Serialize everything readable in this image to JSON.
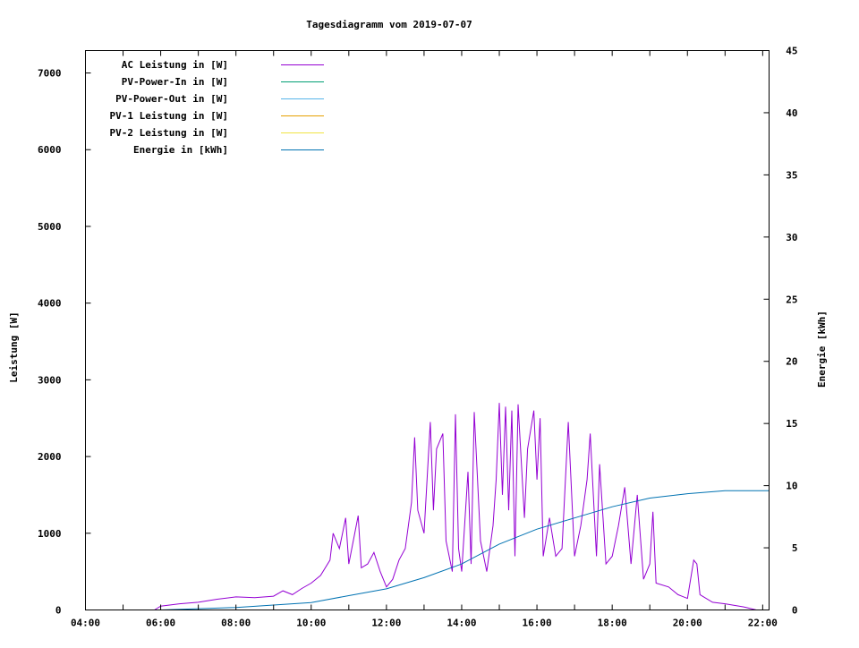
{
  "chart_data": {
    "type": "line",
    "title": "Tagesdiagramm vom 2019-07-07",
    "ylabel": "Leistung [W]",
    "y2label": "Energie [kWh]",
    "xlabel": "",
    "xlim_hours": [
      4,
      22.17
    ],
    "ylim": [
      0,
      7292
    ],
    "y2lim": [
      0,
      45
    ],
    "x_tick_labels": [
      "04:00",
      "06:00",
      "08:00",
      "10:00",
      "12:00",
      "14:00",
      "16:00",
      "18:00",
      "20:00",
      "22:00"
    ],
    "y_ticks": [
      0,
      1000,
      2000,
      3000,
      4000,
      5000,
      6000,
      7000
    ],
    "y2_ticks": [
      0,
      5,
      10,
      15,
      20,
      25,
      30,
      35,
      40,
      45
    ],
    "legend_position": "top-left",
    "legend": [
      {
        "label": "AC Leistung in [W]",
        "color": "#9400d3"
      },
      {
        "label": "PV-Power-In in [W]",
        "color": "#009e73"
      },
      {
        "label": "PV-Power-Out in [W]",
        "color": "#56b4e9"
      },
      {
        "label": "PV-1 Leistung in [W]",
        "color": "#e69f00"
      },
      {
        "label": "PV-2 Leistung in [W]",
        "color": "#f0e442"
      },
      {
        "label": "Energie in [kWh]",
        "color": "#0072b2"
      }
    ],
    "series": [
      {
        "name": "AC Leistung in [W]",
        "axis": "y",
        "color": "#9400d3",
        "x": [
          "05:50",
          "06:00",
          "06:30",
          "07:00",
          "07:30",
          "08:00",
          "08:30",
          "09:00",
          "09:15",
          "09:30",
          "09:45",
          "10:00",
          "10:15",
          "10:30",
          "10:35",
          "10:45",
          "10:55",
          "11:00",
          "11:15",
          "11:20",
          "11:30",
          "11:40",
          "11:50",
          "12:00",
          "12:10",
          "12:20",
          "12:30",
          "12:40",
          "12:45",
          "12:50",
          "13:00",
          "13:10",
          "13:15",
          "13:20",
          "13:30",
          "13:35",
          "13:45",
          "13:50",
          "13:55",
          "14:00",
          "14:10",
          "14:15",
          "14:20",
          "14:30",
          "14:40",
          "14:50",
          "14:55",
          "15:00",
          "15:05",
          "15:10",
          "15:15",
          "15:20",
          "15:25",
          "15:30",
          "15:40",
          "15:45",
          "15:55",
          "16:00",
          "16:05",
          "16:10",
          "16:20",
          "16:30",
          "16:40",
          "16:50",
          "17:00",
          "17:10",
          "17:20",
          "17:25",
          "17:30",
          "17:35",
          "17:40",
          "17:50",
          "18:00",
          "18:10",
          "18:20",
          "18:30",
          "18:40",
          "18:50",
          "19:00",
          "19:05",
          "19:10",
          "19:30",
          "19:45",
          "20:00",
          "20:10",
          "20:15",
          "20:20",
          "20:40",
          "21:00",
          "21:30",
          "21:50"
        ],
        "values": [
          0,
          50,
          80,
          100,
          140,
          170,
          160,
          180,
          250,
          200,
          280,
          350,
          450,
          650,
          1000,
          800,
          1200,
          600,
          1230,
          550,
          600,
          750,
          500,
          300,
          400,
          650,
          800,
          1400,
          2250,
          1300,
          1000,
          2450,
          1300,
          2100,
          2300,
          900,
          500,
          2550,
          800,
          500,
          1800,
          600,
          2580,
          900,
          500,
          1100,
          1700,
          2700,
          1500,
          2650,
          1300,
          2600,
          700,
          2680,
          1200,
          2100,
          2600,
          1700,
          2500,
          700,
          1200,
          700,
          800,
          2450,
          700,
          1100,
          1700,
          2300,
          1500,
          700,
          1900,
          600,
          700,
          1100,
          1600,
          600,
          1500,
          400,
          600,
          1280,
          350,
          300,
          200,
          150,
          650,
          600,
          200,
          100,
          80,
          40,
          0
        ]
      },
      {
        "name": "Energie in [kWh]",
        "axis": "y2",
        "color": "#0072b2",
        "x": [
          "06:00",
          "08:00",
          "10:00",
          "11:00",
          "12:00",
          "13:00",
          "14:00",
          "15:00",
          "16:00",
          "17:00",
          "18:00",
          "19:00",
          "20:00",
          "21:00",
          "22:10"
        ],
        "values": [
          0,
          0.2,
          0.6,
          1.15,
          1.7,
          2.6,
          3.7,
          5.3,
          6.5,
          7.4,
          8.3,
          9.0,
          9.35,
          9.6,
          9.6
        ]
      }
    ]
  }
}
